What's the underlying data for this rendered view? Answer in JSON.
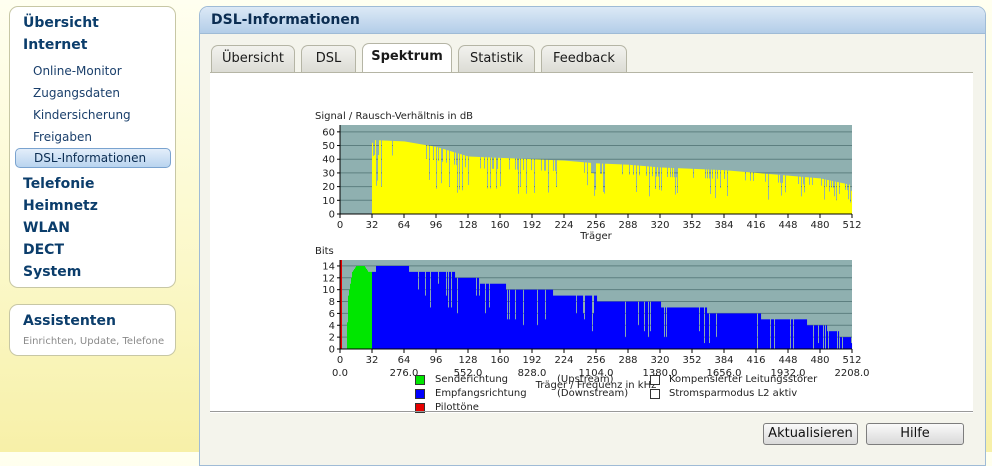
{
  "nav": {
    "items": [
      {
        "label": "Übersicht"
      },
      {
        "label": "Internet",
        "sub": [
          {
            "label": "Online-Monitor"
          },
          {
            "label": "Zugangsdaten"
          },
          {
            "label": "Kindersicherung"
          },
          {
            "label": "Freigaben"
          },
          {
            "label": "DSL-Informationen",
            "selected": true
          }
        ]
      },
      {
        "label": "Telefonie"
      },
      {
        "label": "Heimnetz"
      },
      {
        "label": "WLAN"
      },
      {
        "label": "DECT"
      },
      {
        "label": "System"
      }
    ]
  },
  "assistants": {
    "title": "Assistenten",
    "subtitle": "Einrichten, Update, Telefone"
  },
  "page": {
    "title": "DSL-Informationen"
  },
  "tabs": [
    {
      "label": "Übersicht"
    },
    {
      "label": "DSL"
    },
    {
      "label": "Spektrum",
      "active": true
    },
    {
      "label": "Statistik"
    },
    {
      "label": "Feedback"
    }
  ],
  "colors": {
    "plot_bg": "#8fb0b0",
    "snr_fill": "#ffff00",
    "upstream": "#00e600",
    "downstream": "#0000ff",
    "pilot": "#e60000"
  },
  "chart_data": [
    {
      "type": "area",
      "title": "Signal / Rausch-Verhältnis in dB",
      "xlabel": "Träger",
      "xlim": [
        0,
        512
      ],
      "ylim": [
        0,
        65
      ],
      "xticks": [
        0,
        32,
        64,
        96,
        128,
        160,
        192,
        224,
        256,
        288,
        320,
        352,
        384,
        416,
        448,
        480,
        512
      ],
      "yticks": [
        0,
        10,
        20,
        30,
        40,
        50,
        60
      ],
      "series": [
        {
          "x": [
            0,
            31,
            32,
            34,
            64,
            96,
            128,
            160,
            192,
            224,
            256,
            288,
            320,
            352,
            384,
            416,
            448,
            480,
            512
          ],
          "y": [
            0,
            0,
            52,
            54,
            53,
            49,
            42,
            41,
            40,
            39,
            37,
            36,
            34,
            33,
            32,
            30,
            28,
            26,
            21
          ]
        }
      ]
    },
    {
      "type": "area",
      "title": "Bits",
      "xlabel": "Träger / Frequenz in kHz",
      "xlim": [
        0,
        512
      ],
      "ylim": [
        0,
        15
      ],
      "xticks": [
        0,
        32,
        64,
        96,
        128,
        160,
        192,
        224,
        256,
        288,
        320,
        352,
        384,
        416,
        448,
        480,
        512
      ],
      "freq_labels": [
        "0.0",
        "276.0",
        "552.0",
        "828.0",
        "1104.0",
        "1380.0",
        "1656.0",
        "1932.0",
        "2208.0"
      ],
      "yticks": [
        0,
        2,
        4,
        6,
        8,
        10,
        12,
        14
      ],
      "series": [
        {
          "name": "Senderichtung",
          "x": [
            6,
            8,
            12,
            16,
            20,
            24,
            28,
            31
          ],
          "y": [
            0,
            9,
            13,
            14,
            14,
            14,
            13,
            13
          ]
        },
        {
          "name": "Empfangsrichtung",
          "x": [
            32,
            40,
            64,
            72,
            100,
            128,
            150,
            180,
            200,
            224,
            256,
            288,
            320,
            352,
            380,
            420,
            450,
            482,
            490,
            508,
            512
          ],
          "y": [
            13,
            14,
            14,
            13,
            13,
            12,
            11,
            10,
            10,
            9,
            8.5,
            8,
            7.5,
            7,
            6,
            5.5,
            5,
            4,
            3,
            2,
            1
          ]
        },
        {
          "name": "Pilottöne",
          "x": [
            0
          ],
          "y": [
            15
          ]
        }
      ]
    }
  ],
  "legend": [
    {
      "label": "Senderichtung",
      "note": "(Upstream)",
      "color": "#00e600"
    },
    {
      "label": "Empfangsrichtung",
      "note": "(Downstream)",
      "color": "#0000ff"
    },
    {
      "label": "Pilottöne",
      "note": "",
      "color": "#e60000"
    }
  ],
  "legend_right": [
    {
      "label": "Kompensierter Leitungsstörer",
      "color": "#ffffff"
    },
    {
      "label": "Stromsparmodus L2 aktiv",
      "color": "#ffffff"
    }
  ],
  "buttons": {
    "refresh": "Aktualisieren",
    "help": "Hilfe"
  }
}
